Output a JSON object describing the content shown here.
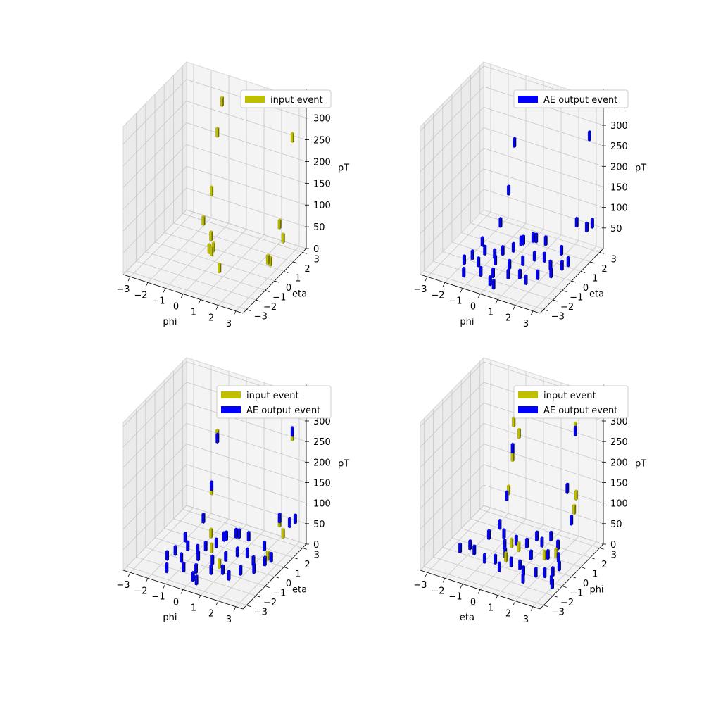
{
  "colors": {
    "input": "#bfbf00",
    "output": "#0000ff",
    "input_edge": "#6b6b00",
    "output_edge": "#00007a"
  },
  "chart_data": [
    {
      "type": "bar3d",
      "xlabel": "phi",
      "ylabel": "eta",
      "zlabel": "pT",
      "xticks": [
        "−3",
        "−2",
        "−1",
        "0",
        "1",
        "2",
        "3"
      ],
      "yticks": [
        "−3",
        "−2",
        "−1",
        "0",
        "1",
        "2",
        "3"
      ],
      "zticks": [
        "0",
        "50",
        "100",
        "150",
        "200",
        "250",
        "300"
      ],
      "zlim": [
        0,
        340
      ],
      "legend": [
        {
          "label": "input event",
          "color": "input"
        }
      ],
      "series": [
        {
          "name": "input event",
          "color": "input",
          "points": [
            [
              -1.0,
              2.5,
              310
            ],
            [
              3.0,
              2.5,
              280
            ],
            [
              -1.0,
              2.0,
              250
            ],
            [
              -0.8,
              1.0,
              140
            ],
            [
              2.8,
              1.5,
              100
            ],
            [
              -1.0,
              0.5,
              80
            ],
            [
              3.0,
              1.5,
              70
            ],
            [
              -0.3,
              0.0,
              65
            ],
            [
              0.0,
              -0.5,
              45
            ],
            [
              0.0,
              -0.3,
              50
            ],
            [
              -0.3,
              -0.2,
              40
            ],
            [
              0.6,
              -0.8,
              20
            ],
            [
              2.5,
              0.8,
              30
            ],
            [
              2.6,
              0.9,
              25
            ]
          ]
        }
      ]
    },
    {
      "type": "bar3d",
      "xlabel": "phi",
      "ylabel": "eta",
      "zlabel": "pT",
      "xticks": [
        "−3",
        "−2",
        "−1",
        "0",
        "1",
        "2",
        "3"
      ],
      "yticks": [
        "−3",
        "−2",
        "−1",
        "0",
        "1",
        "2",
        "3"
      ],
      "zticks": [
        "50",
        "100",
        "150",
        "200",
        "250",
        "300",
        "350"
      ],
      "zlim": [
        0,
        360
      ],
      "legend": [
        {
          "label": "AE output event",
          "color": "output"
        }
      ],
      "series": [
        {
          "name": "AE output event",
          "color": "output",
          "points": [
            [
              -1.0,
              2.5,
              330
            ],
            [
              3.0,
              2.5,
              300
            ],
            [
              -1.0,
              2.0,
              240
            ],
            [
              -0.8,
              1.0,
              150
            ],
            [
              2.8,
              1.5,
              110
            ],
            [
              3.0,
              2.8,
              80
            ],
            [
              3.0,
              2.2,
              85
            ],
            [
              -1.0,
              0.5,
              80
            ],
            [
              -1.5,
              -0.5,
              50
            ],
            [
              -1.2,
              -0.8,
              40
            ],
            [
              -0.8,
              -0.5,
              30
            ],
            [
              -0.5,
              -0.2,
              35
            ],
            [
              0.0,
              0.0,
              45
            ],
            [
              0.3,
              0.5,
              55
            ],
            [
              0.7,
              0.8,
              60
            ],
            [
              -1.8,
              -1.0,
              25
            ],
            [
              -2.0,
              -1.5,
              10
            ],
            [
              -1.3,
              -1.3,
              20
            ],
            [
              -0.5,
              -1.0,
              30
            ],
            [
              0.2,
              -0.8,
              25
            ],
            [
              0.8,
              -0.5,
              35
            ],
            [
              1.2,
              0.0,
              40
            ],
            [
              1.5,
              0.5,
              30
            ],
            [
              2.0,
              0.2,
              25
            ],
            [
              2.3,
              -0.3,
              20
            ],
            [
              2.6,
              0.3,
              30
            ],
            [
              2.8,
              0.6,
              35
            ],
            [
              1.8,
              -0.8,
              20
            ],
            [
              1.0,
              -1.2,
              15
            ],
            [
              0.5,
              -1.5,
              10
            ],
            [
              -0.2,
              -1.8,
              5
            ],
            [
              -0.8,
              -2.0,
              5
            ],
            [
              1.5,
              -1.5,
              10
            ],
            [
              0.0,
              -2.5,
              5
            ],
            [
              0.3,
              -2.7,
              5
            ],
            [
              -1.5,
              -2.5,
              5
            ],
            [
              2.2,
              1.0,
              45
            ],
            [
              1.2,
              1.2,
              50
            ],
            [
              0.5,
              1.5,
              40
            ],
            [
              -0.2,
              1.2,
              30
            ]
          ]
        }
      ]
    },
    {
      "type": "bar3d",
      "xlabel": "phi",
      "ylabel": "eta",
      "zlabel": "pT",
      "xticks": [
        "−3",
        "−2",
        "−1",
        "0",
        "1",
        "2",
        "3"
      ],
      "yticks": [
        "−3",
        "−2",
        "−1",
        "0",
        "1",
        "2",
        "3"
      ],
      "zticks": [
        "0",
        "50",
        "100",
        "150",
        "200",
        "250",
        "300",
        "350"
      ],
      "zlim": [
        0,
        360
      ],
      "legend": [
        {
          "label": "input event",
          "color": "input"
        },
        {
          "label": "AE output event",
          "color": "output"
        }
      ],
      "series": [
        {
          "name": "input event",
          "color": "input",
          "points": [
            [
              -1.0,
              2.5,
              320
            ],
            [
              3.0,
              2.5,
              290
            ],
            [
              -1.0,
              2.0,
              250
            ],
            [
              -0.8,
              1.0,
              140
            ],
            [
              2.8,
              1.5,
              100
            ],
            [
              -1.0,
              0.5,
              80
            ],
            [
              3.0,
              1.5,
              75
            ],
            [
              -0.3,
              0.0,
              65
            ],
            [
              0.0,
              -0.5,
              45
            ],
            [
              0.6,
              -0.8,
              20
            ],
            [
              2.5,
              0.8,
              30
            ]
          ]
        },
        {
          "name": "AE output event",
          "color": "output",
          "points": [
            [
              -1.0,
              2.5,
              330
            ],
            [
              3.0,
              2.5,
              300
            ],
            [
              -1.0,
              2.0,
              240
            ],
            [
              -0.8,
              1.0,
              150
            ],
            [
              2.8,
              1.5,
              110
            ],
            [
              3.0,
              2.8,
              80
            ],
            [
              3.0,
              2.2,
              85
            ],
            [
              -1.0,
              0.5,
              80
            ],
            [
              -1.5,
              -0.5,
              50
            ],
            [
              -1.2,
              -0.8,
              40
            ],
            [
              -0.8,
              -0.5,
              30
            ],
            [
              -0.5,
              -0.2,
              35
            ],
            [
              0.0,
              0.0,
              45
            ],
            [
              0.3,
              0.5,
              55
            ],
            [
              0.7,
              0.8,
              60
            ],
            [
              -1.8,
              -1.0,
              25
            ],
            [
              -2.0,
              -1.5,
              10
            ],
            [
              -1.3,
              -1.3,
              20
            ],
            [
              -0.5,
              -1.0,
              30
            ],
            [
              0.2,
              -0.8,
              25
            ],
            [
              0.8,
              -0.5,
              35
            ],
            [
              1.2,
              0.0,
              40
            ],
            [
              1.5,
              0.5,
              30
            ],
            [
              2.0,
              0.2,
              25
            ],
            [
              2.3,
              -0.3,
              20
            ],
            [
              2.6,
              0.3,
              30
            ],
            [
              2.8,
              0.6,
              35
            ],
            [
              1.8,
              -0.8,
              20
            ],
            [
              1.0,
              -1.2,
              15
            ],
            [
              0.5,
              -1.5,
              10
            ],
            [
              -0.2,
              -1.8,
              5
            ],
            [
              -0.8,
              -2.0,
              5
            ],
            [
              1.5,
              -1.5,
              10
            ],
            [
              0.0,
              -2.5,
              5
            ],
            [
              0.3,
              -2.7,
              5
            ],
            [
              -1.5,
              -2.5,
              5
            ],
            [
              2.2,
              1.0,
              45
            ],
            [
              1.2,
              1.2,
              50
            ],
            [
              0.5,
              1.5,
              40
            ],
            [
              -0.2,
              1.2,
              30
            ]
          ]
        }
      ]
    },
    {
      "type": "bar3d",
      "xlabel": "eta",
      "ylabel": "phi",
      "zlabel": "pT",
      "xticks": [
        "−3",
        "−2",
        "−1",
        "0",
        "1",
        "2",
        "3"
      ],
      "yticks": [
        "−3",
        "−2",
        "−1",
        "0",
        "1",
        "2",
        "3"
      ],
      "zticks": [
        "0",
        "50",
        "100",
        "150",
        "200",
        "250",
        "300",
        "350"
      ],
      "zlim": [
        0,
        360
      ],
      "legend": [
        {
          "label": "input event",
          "color": "input"
        },
        {
          "label": "AE output event",
          "color": "output"
        }
      ],
      "series": [
        {
          "name": "input event",
          "color": "input",
          "points": [
            [
              2.5,
              3.0,
              330
            ],
            [
              2.2,
              2.5,
              300
            ],
            [
              -1.0,
              2.5,
              240
            ],
            [
              -1.2,
              2.3,
              270
            ],
            [
              -1.0,
              1.8,
              200
            ],
            [
              2.5,
              2.0,
              150
            ],
            [
              2.5,
              1.8,
              120
            ],
            [
              -0.8,
              1.0,
              140
            ],
            [
              0.0,
              -0.2,
              50
            ],
            [
              0.3,
              0.0,
              40
            ],
            [
              0.0,
              -0.8,
              30
            ],
            [
              1.5,
              0.5,
              25
            ],
            [
              2.0,
              0.8,
              30
            ]
          ]
        },
        {
          "name": "AE output event",
          "color": "output",
          "points": [
            [
              -1.0,
              2.5,
              310
            ],
            [
              2.2,
              2.5,
              290
            ],
            [
              -1.0,
              1.8,
              220
            ],
            [
              2.0,
              2.0,
              160
            ],
            [
              -0.8,
              0.8,
              130
            ],
            [
              2.5,
              1.5,
              100
            ],
            [
              -2.2,
              -0.5,
              20
            ],
            [
              -1.8,
              -0.8,
              15
            ],
            [
              -1.5,
              0.2,
              40
            ],
            [
              -1.2,
              0.8,
              55
            ],
            [
              -0.8,
              0.5,
              45
            ],
            [
              -0.5,
              0.0,
              35
            ],
            [
              -0.2,
              -0.5,
              30
            ],
            [
              0.0,
              0.3,
              45
            ],
            [
              0.3,
              -0.8,
              20
            ],
            [
              0.5,
              0.5,
              40
            ],
            [
              0.8,
              1.0,
              50
            ],
            [
              1.0,
              0.0,
              30
            ],
            [
              1.2,
              0.8,
              45
            ],
            [
              1.5,
              1.2,
              55
            ],
            [
              1.8,
              0.3,
              35
            ],
            [
              2.0,
              1.0,
              45
            ],
            [
              2.3,
              0.5,
              30
            ],
            [
              2.6,
              0.0,
              25
            ],
            [
              0.8,
              -0.8,
              20
            ],
            [
              1.2,
              -1.2,
              15
            ],
            [
              1.8,
              -1.0,
              10
            ],
            [
              2.5,
              -0.5,
              10
            ],
            [
              2.8,
              -1.2,
              5
            ],
            [
              3.0,
              -1.5,
              5
            ],
            [
              -0.5,
              -1.0,
              20
            ],
            [
              0.0,
              -1.5,
              10
            ],
            [
              -1.0,
              -1.2,
              15
            ],
            [
              -2.5,
              -1.0,
              10
            ],
            [
              1.5,
              -1.8,
              5
            ],
            [
              2.2,
              -0.8,
              15
            ]
          ]
        }
      ]
    }
  ]
}
